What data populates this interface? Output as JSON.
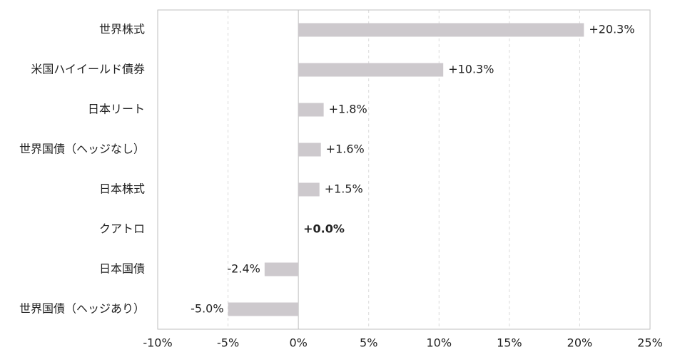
{
  "chart_data": {
    "type": "bar",
    "orientation": "horizontal",
    "categories": [
      "世界株式",
      "米国ハイイールド債券",
      "日本リート",
      "世界国債（ヘッジなし）",
      "日本株式",
      "クアトロ",
      "日本国債",
      "世界国債（ヘッジあり）"
    ],
    "values": [
      20.3,
      10.3,
      1.8,
      1.6,
      1.5,
      0.0,
      -2.4,
      -5.0
    ],
    "value_labels": [
      "+20.3%",
      "+10.3%",
      "+1.8%",
      "+1.6%",
      "+1.5%",
      "+0.0%",
      "-2.4%",
      "-5.0%"
    ],
    "xlim": [
      -10,
      25
    ],
    "x_ticks": [
      -10,
      -5,
      0,
      5,
      10,
      15,
      20,
      25
    ],
    "x_tick_labels": [
      "-10%",
      "-5%",
      "0%",
      "5%",
      "10%",
      "15%",
      "20%",
      "25%"
    ],
    "title": "",
    "xlabel": "",
    "ylabel": "",
    "grid": "vertical dashed",
    "legend": "none",
    "colors": {
      "bar": "#cdc9cd",
      "highlight_label": "#1a6e6a",
      "text": "#222222",
      "axis": "#bfbfbf",
      "grid": "#d9d9d9"
    },
    "highlight_category": "クアトロ"
  }
}
